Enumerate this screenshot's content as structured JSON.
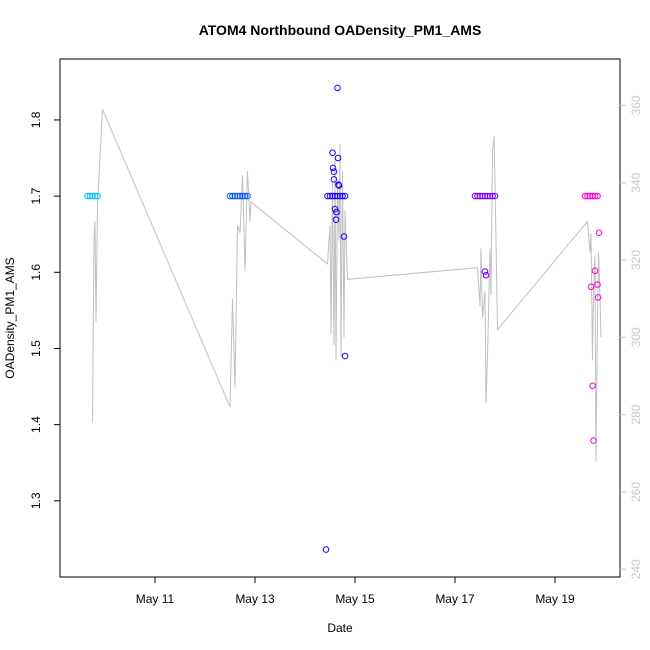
{
  "chart_data": {
    "type": "scatter",
    "title": "ATOM4 Northbound OADensity_PM1_AMS",
    "xlabel": "Date",
    "ylabel": "OADensity_PM1_AMS",
    "x_ticks": [
      "May 11",
      "May 13",
      "May 15",
      "May 17",
      "May 19"
    ],
    "x_tick_days": [
      11,
      13,
      15,
      17,
      19
    ],
    "xlim": [
      9.1,
      20.3
    ],
    "ylim": [
      1.2,
      1.88
    ],
    "y_ticks": [
      1.3,
      1.4,
      1.5,
      1.6,
      1.7,
      1.8
    ],
    "y2_ticks": [
      240,
      260,
      280,
      300,
      320,
      340,
      360
    ],
    "y2lim": [
      238,
      372
    ],
    "grid": false,
    "series": [
      {
        "name": "cyan",
        "color": "#00bfff",
        "points": [
          [
            9.65,
            1.7
          ],
          [
            9.7,
            1.7
          ],
          [
            9.75,
            1.7
          ],
          [
            9.8,
            1.7
          ],
          [
            9.85,
            1.7
          ]
        ]
      },
      {
        "name": "blue",
        "color": "#0055ff",
        "points": [
          [
            12.5,
            1.7
          ],
          [
            12.55,
            1.7
          ],
          [
            12.6,
            1.7
          ],
          [
            12.65,
            1.7
          ],
          [
            12.7,
            1.7
          ],
          [
            12.75,
            1.7
          ],
          [
            12.8,
            1.7
          ],
          [
            12.85,
            1.7
          ]
        ]
      },
      {
        "name": "dark-blue",
        "color": "#1a00ff",
        "points": [
          [
            14.42,
            1.236
          ],
          [
            14.45,
            1.7
          ],
          [
            14.5,
            1.7
          ],
          [
            14.55,
            1.757
          ],
          [
            14.56,
            1.737
          ],
          [
            14.58,
            1.732
          ],
          [
            14.58,
            1.722
          ],
          [
            14.6,
            1.683
          ],
          [
            14.62,
            1.669
          ],
          [
            14.63,
            1.679
          ],
          [
            14.65,
            1.842
          ],
          [
            14.66,
            1.75
          ],
          [
            14.67,
            1.715
          ],
          [
            14.68,
            1.714
          ],
          [
            14.55,
            1.7
          ],
          [
            14.6,
            1.7
          ],
          [
            14.65,
            1.7
          ],
          [
            14.7,
            1.7
          ],
          [
            14.75,
            1.7
          ],
          [
            14.8,
            1.7
          ],
          [
            14.78,
            1.647
          ],
          [
            14.8,
            1.49
          ]
        ]
      },
      {
        "name": "violet",
        "color": "#7a00ff",
        "points": [
          [
            17.4,
            1.7
          ],
          [
            17.45,
            1.7
          ],
          [
            17.5,
            1.7
          ],
          [
            17.55,
            1.7
          ],
          [
            17.6,
            1.7
          ],
          [
            17.65,
            1.7
          ],
          [
            17.6,
            1.601
          ],
          [
            17.62,
            1.596
          ],
          [
            17.7,
            1.7
          ],
          [
            17.75,
            1.7
          ],
          [
            17.8,
            1.7
          ]
        ]
      },
      {
        "name": "magenta",
        "color": "#ff00cc",
        "points": [
          [
            19.6,
            1.7
          ],
          [
            19.65,
            1.7
          ],
          [
            19.7,
            1.7
          ],
          [
            19.75,
            1.7
          ],
          [
            19.8,
            1.7
          ],
          [
            19.85,
            1.7
          ],
          [
            19.72,
            1.581
          ],
          [
            19.75,
            1.451
          ],
          [
            19.77,
            1.379
          ],
          [
            19.8,
            1.602
          ],
          [
            19.85,
            1.584
          ],
          [
            19.86,
            1.567
          ],
          [
            19.88,
            1.652
          ]
        ]
      }
    ],
    "secondary_series": {
      "name": "grey-line",
      "color": "#c0c0c0",
      "axis": "right",
      "points": [
        [
          9.75,
          278
        ],
        [
          9.78,
          325
        ],
        [
          9.8,
          330
        ],
        [
          9.82,
          304
        ],
        [
          9.85,
          334
        ],
        [
          9.95,
          359
        ],
        [
          12.5,
          282
        ],
        [
          12.55,
          310
        ],
        [
          12.6,
          287
        ],
        [
          12.65,
          329
        ],
        [
          12.7,
          327
        ],
        [
          12.75,
          342
        ],
        [
          12.8,
          317
        ],
        [
          12.85,
          343
        ],
        [
          12.9,
          330
        ],
        [
          12.92,
          335
        ],
        [
          14.45,
          319
        ],
        [
          14.5,
          329
        ],
        [
          14.52,
          301
        ],
        [
          14.55,
          340
        ],
        [
          14.58,
          298
        ],
        [
          14.6,
          346
        ],
        [
          14.62,
          294
        ],
        [
          14.65,
          340
        ],
        [
          14.68,
          325
        ],
        [
          14.7,
          350
        ],
        [
          14.72,
          295
        ],
        [
          14.75,
          343
        ],
        [
          14.78,
          300
        ],
        [
          14.8,
          333
        ],
        [
          14.85,
          315
        ],
        [
          17.45,
          318
        ],
        [
          17.5,
          308
        ],
        [
          17.52,
          323
        ],
        [
          17.55,
          305
        ],
        [
          17.6,
          312
        ],
        [
          17.62,
          283
        ],
        [
          17.65,
          295
        ],
        [
          17.7,
          323
        ],
        [
          17.72,
          311
        ],
        [
          17.75,
          348
        ],
        [
          17.78,
          352
        ],
        [
          17.8,
          340
        ],
        [
          17.85,
          302
        ],
        [
          19.65,
          330
        ],
        [
          19.7,
          322
        ],
        [
          19.72,
          327
        ],
        [
          19.75,
          294
        ],
        [
          19.77,
          311
        ],
        [
          19.8,
          321
        ],
        [
          19.82,
          268
        ],
        [
          19.85,
          306
        ],
        [
          19.87,
          322
        ],
        [
          19.9,
          310
        ],
        [
          19.92,
          300
        ]
      ]
    }
  }
}
